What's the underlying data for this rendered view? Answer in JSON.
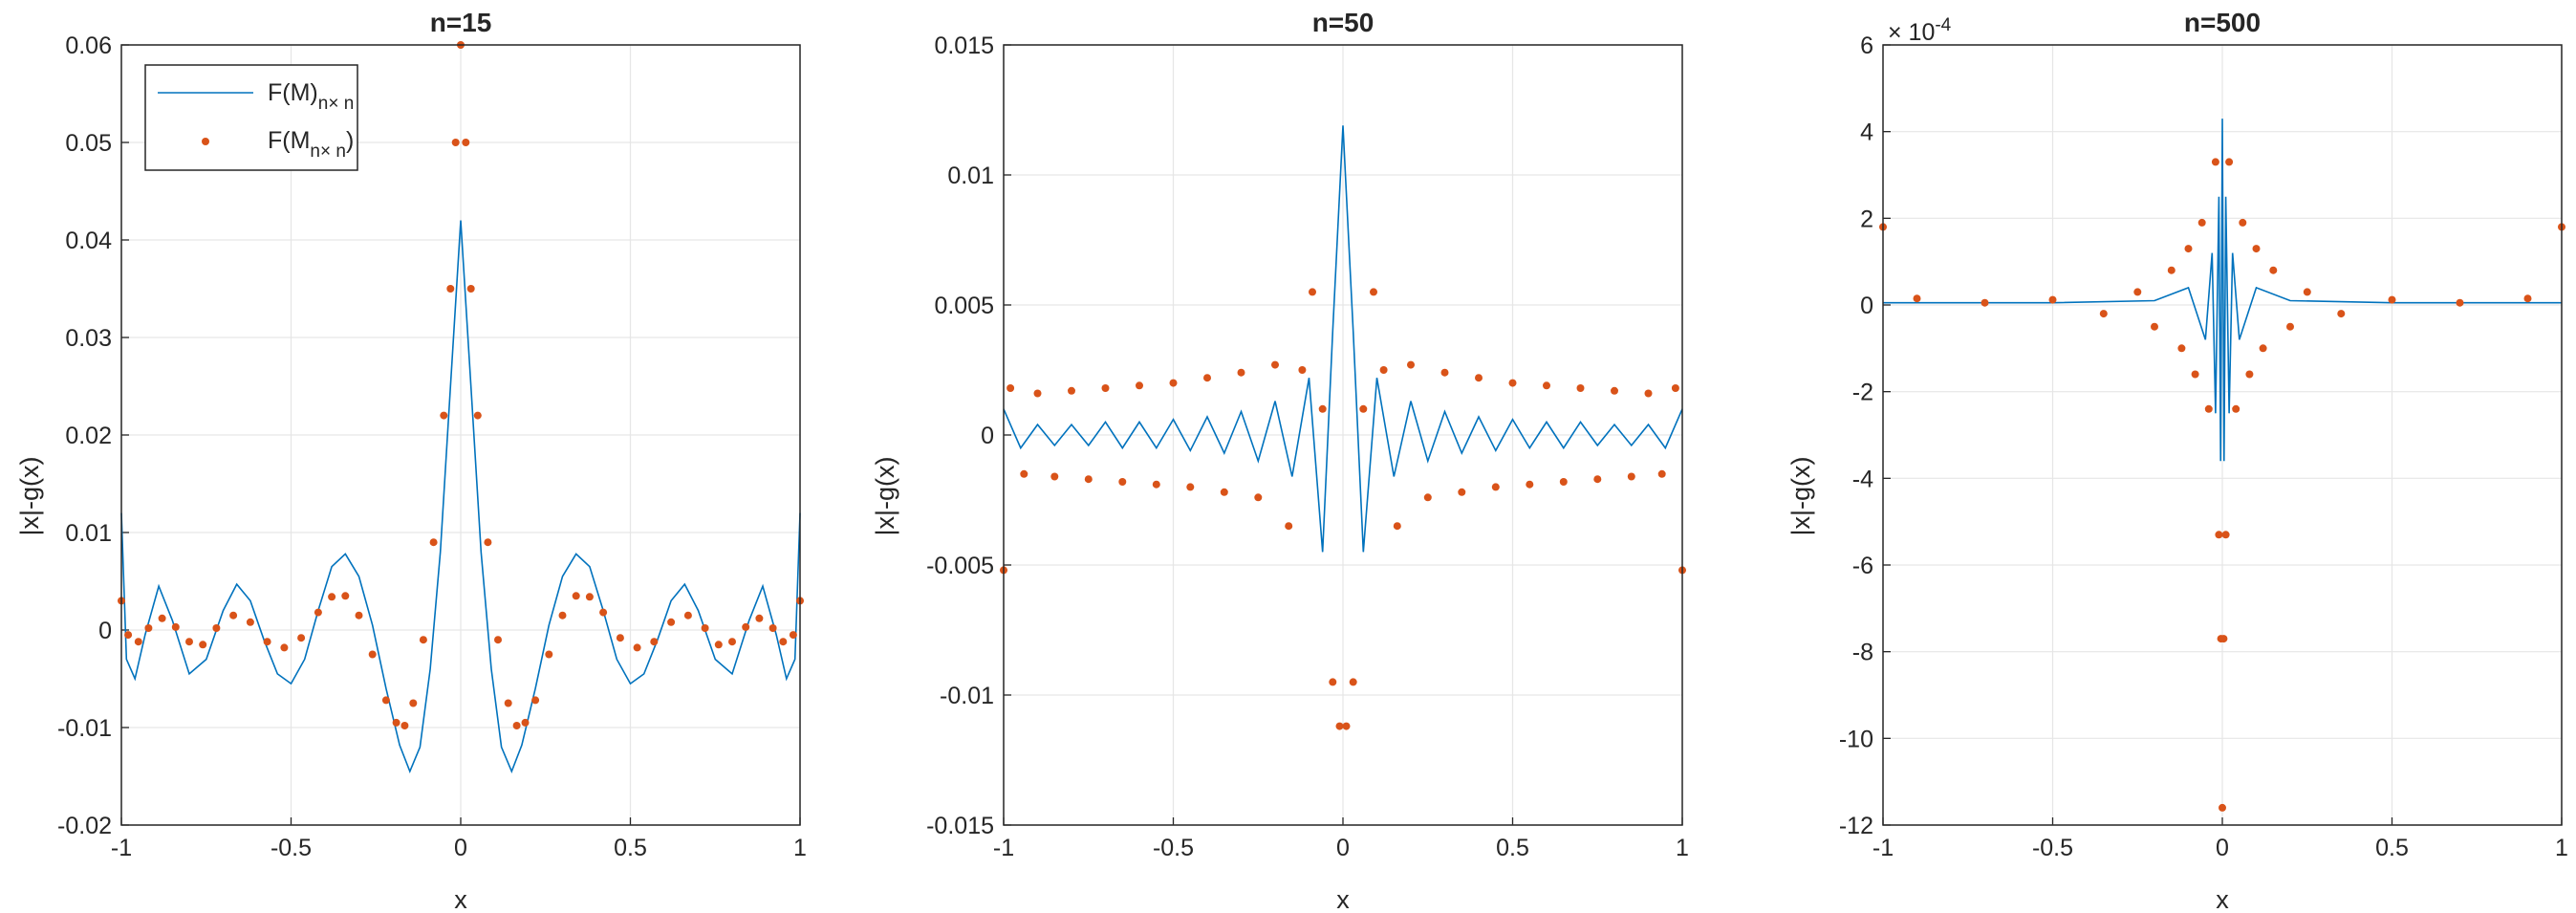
{
  "figure": {
    "colors": {
      "line": "#0072BD",
      "dots": "#D95319",
      "grid": "#e6e6e6",
      "axis": "#262626"
    }
  },
  "legend": {
    "entries": [
      "F(M)n× n",
      "F(Mn× n)"
    ],
    "location": "top-left of first panel"
  },
  "chart_data": [
    {
      "type": "line",
      "title": "n=15",
      "xlabel": "x",
      "ylabel": "|x|-g(x)",
      "xlim": [
        -1,
        1
      ],
      "ylim": [
        -0.02,
        0.06
      ],
      "xticks": [
        "-1",
        "-0.5",
        "0",
        "0.5",
        "1"
      ],
      "yticks": [
        "-0.02",
        "-0.01",
        "0",
        "0.01",
        "0.02",
        "0.03",
        "0.04",
        "0.05",
        "0.06"
      ],
      "exponent_label": "",
      "grid": true,
      "series": [
        {
          "name": "F(M)n× n",
          "style": "line",
          "x": [
            -1,
            -0.985,
            -0.96,
            -0.93,
            -0.89,
            -0.85,
            -0.8,
            -0.75,
            -0.7,
            -0.66,
            -0.62,
            -0.58,
            -0.54,
            -0.5,
            -0.46,
            -0.42,
            -0.38,
            -0.34,
            -0.3,
            -0.26,
            -0.22,
            -0.18,
            -0.15,
            -0.12,
            -0.09,
            -0.06,
            -0.03,
            0,
            0.03,
            0.06,
            0.09,
            0.12,
            0.15,
            0.18,
            0.22,
            0.26,
            0.3,
            0.34,
            0.38,
            0.42,
            0.46,
            0.5,
            0.54,
            0.58,
            0.62,
            0.66,
            0.7,
            0.75,
            0.8,
            0.85,
            0.89,
            0.93,
            0.96,
            0.985,
            1
          ],
          "values": [
            0.012,
            -0.003,
            -0.005,
            -0.0005,
            0.0045,
            0.001,
            -0.0045,
            -0.003,
            0.002,
            0.0047,
            0.003,
            -0.001,
            -0.0045,
            -0.0055,
            -0.003,
            0.002,
            0.0065,
            0.0078,
            0.0055,
            0.0005,
            -0.006,
            -0.0118,
            -0.0145,
            -0.012,
            -0.004,
            0.008,
            0.025,
            0.042,
            0.025,
            0.008,
            -0.004,
            -0.012,
            -0.0145,
            -0.0118,
            -0.006,
            0.0005,
            0.0055,
            0.0078,
            0.0065,
            0.002,
            -0.003,
            -0.0055,
            -0.0045,
            -0.001,
            0.003,
            0.0047,
            0.002,
            -0.003,
            -0.0045,
            0.001,
            0.0045,
            -0.0005,
            -0.005,
            -0.003,
            0.012
          ]
        },
        {
          "name": "F(Mn× n)",
          "style": "dots",
          "x": [
            -1,
            -0.98,
            -0.95,
            -0.92,
            -0.88,
            -0.84,
            -0.8,
            -0.76,
            -0.72,
            -0.67,
            -0.62,
            -0.57,
            -0.52,
            -0.47,
            -0.42,
            -0.38,
            -0.34,
            -0.3,
            -0.26,
            -0.22,
            -0.19,
            -0.165,
            -0.14,
            -0.11,
            -0.08,
            -0.05,
            -0.03,
            -0.015,
            0,
            0.015,
            0.03,
            0.05,
            0.08,
            0.11,
            0.14,
            0.165,
            0.19,
            0.22,
            0.26,
            0.3,
            0.34,
            0.38,
            0.42,
            0.47,
            0.52,
            0.57,
            0.62,
            0.67,
            0.72,
            0.76,
            0.8,
            0.84,
            0.88,
            0.92,
            0.95,
            0.98,
            1
          ],
          "values": [
            0.003,
            -0.0005,
            -0.0012,
            0.0002,
            0.0012,
            0.0003,
            -0.0012,
            -0.0015,
            0.0002,
            0.0015,
            0.0008,
            -0.0012,
            -0.0018,
            -0.0008,
            0.0018,
            0.0034,
            0.0035,
            0.0015,
            -0.0025,
            -0.0072,
            -0.0095,
            -0.0098,
            -0.0075,
            -0.001,
            0.009,
            0.022,
            0.035,
            0.05,
            0.06,
            0.05,
            0.035,
            0.022,
            0.009,
            -0.001,
            -0.0075,
            -0.0098,
            -0.0095,
            -0.0072,
            -0.0025,
            0.0015,
            0.0035,
            0.0034,
            0.0018,
            -0.0008,
            -0.0018,
            -0.0012,
            0.0008,
            0.0015,
            0.0002,
            -0.0015,
            -0.0012,
            0.0003,
            0.0012,
            0.0002,
            -0.0012,
            -0.0005,
            0.003
          ]
        }
      ]
    },
    {
      "type": "line",
      "title": "n=50",
      "xlabel": "x",
      "ylabel": "|x|-g(x)",
      "xlim": [
        -1,
        1
      ],
      "ylim": [
        -0.015,
        0.015
      ],
      "xticks": [
        "-1",
        "-0.5",
        "0",
        "0.5",
        "1"
      ],
      "yticks": [
        "-0.015",
        "-0.01",
        "-0.005",
        "0",
        "0.005",
        "0.01",
        "0.015"
      ],
      "exponent_label": "",
      "grid": true,
      "series": [
        {
          "name": "F(M)n× n",
          "style": "line",
          "x": [
            -1,
            -0.95,
            -0.9,
            -0.85,
            -0.8,
            -0.75,
            -0.7,
            -0.65,
            -0.6,
            -0.55,
            -0.5,
            -0.45,
            -0.4,
            -0.35,
            -0.3,
            -0.25,
            -0.2,
            -0.15,
            -0.1,
            -0.06,
            -0.03,
            0,
            0.03,
            0.06,
            0.1,
            0.15,
            0.2,
            0.25,
            0.3,
            0.35,
            0.4,
            0.45,
            0.5,
            0.55,
            0.6,
            0.65,
            0.7,
            0.75,
            0.8,
            0.85,
            0.9,
            0.95,
            1
          ],
          "values": [
            0.001,
            -0.0005,
            0.0004,
            -0.0004,
            0.0004,
            -0.0004,
            0.0005,
            -0.0005,
            0.0005,
            -0.0005,
            0.0006,
            -0.0006,
            0.0007,
            -0.0007,
            0.0009,
            -0.001,
            0.0013,
            -0.0016,
            0.0022,
            -0.0045,
            0.004,
            0.0119,
            0.004,
            -0.0045,
            0.0022,
            -0.0016,
            0.0013,
            -0.001,
            0.0009,
            -0.0007,
            0.0007,
            -0.0006,
            0.0006,
            -0.0005,
            0.0005,
            -0.0005,
            0.0005,
            -0.0004,
            0.0004,
            -0.0004,
            0.0004,
            -0.0005,
            0.001
          ]
        },
        {
          "name": "F(Mn× n)",
          "style": "dots",
          "x": [
            -1,
            -0.98,
            -0.94,
            -0.9,
            -0.85,
            -0.8,
            -0.75,
            -0.7,
            -0.65,
            -0.6,
            -0.55,
            -0.5,
            -0.45,
            -0.4,
            -0.35,
            -0.3,
            -0.25,
            -0.2,
            -0.16,
            -0.12,
            -0.09,
            -0.06,
            -0.03,
            -0.01,
            0.01,
            0.03,
            0.06,
            0.09,
            0.12,
            0.16,
            0.2,
            0.25,
            0.3,
            0.35,
            0.4,
            0.45,
            0.5,
            0.55,
            0.6,
            0.65,
            0.7,
            0.75,
            0.8,
            0.85,
            0.9,
            0.94,
            0.98,
            1
          ],
          "values": [
            -0.0052,
            0.0018,
            -0.0015,
            0.0016,
            -0.0016,
            0.0017,
            -0.0017,
            0.0018,
            -0.0018,
            0.0019,
            -0.0019,
            0.002,
            -0.002,
            0.0022,
            -0.0022,
            0.0024,
            -0.0024,
            0.0027,
            -0.0035,
            0.0025,
            0.0055,
            0.001,
            -0.0095,
            -0.0112,
            -0.0112,
            -0.0095,
            0.001,
            0.0055,
            0.0025,
            -0.0035,
            0.0027,
            -0.0024,
            0.0024,
            -0.0022,
            0.0022,
            -0.002,
            0.002,
            -0.0019,
            0.0019,
            -0.0018,
            0.0018,
            -0.0017,
            0.0017,
            -0.0016,
            0.0016,
            -0.0015,
            0.0018,
            -0.0052
          ]
        }
      ]
    },
    {
      "type": "line",
      "title": "n=500",
      "xlabel": "x",
      "ylabel": "|x|-g(x)",
      "xlim": [
        -1,
        1
      ],
      "ylim": [
        -12,
        6
      ],
      "xticks": [
        "-1",
        "-0.5",
        "0",
        "0.5",
        "1"
      ],
      "yticks": [
        "-12",
        "-10",
        "-8",
        "-6",
        "-4",
        "-2",
        "0",
        "2",
        "4",
        "6"
      ],
      "exponent_label": "× 10-4",
      "grid": true,
      "series": [
        {
          "name": "F(M)n× n",
          "style": "line",
          "x": [
            -1,
            -0.5,
            -0.2,
            -0.1,
            -0.05,
            -0.03,
            -0.02,
            -0.01,
            -0.005,
            0,
            0.005,
            0.01,
            0.02,
            0.03,
            0.05,
            0.1,
            0.2,
            0.5,
            1
          ],
          "values": [
            0.05,
            0.05,
            0.1,
            0.4,
            -0.8,
            1.2,
            -2.5,
            2.5,
            -3.6,
            4.3,
            -3.6,
            2.5,
            -2.5,
            1.2,
            -0.8,
            0.4,
            0.1,
            0.05,
            0.05
          ]
        },
        {
          "name": "F(Mn× n)",
          "style": "dots",
          "x": [
            -1,
            -0.9,
            -0.7,
            -0.5,
            -0.35,
            -0.25,
            -0.2,
            -0.15,
            -0.12,
            -0.1,
            -0.08,
            -0.06,
            -0.04,
            -0.02,
            -0.01,
            -0.004,
            0,
            0.004,
            0.01,
            0.02,
            0.04,
            0.06,
            0.08,
            0.1,
            0.12,
            0.15,
            0.2,
            0.25,
            0.35,
            0.5,
            0.7,
            0.9,
            1
          ],
          "values": [
            1.8,
            0.15,
            0.05,
            0.12,
            -0.2,
            0.3,
            -0.5,
            0.8,
            -1.0,
            1.3,
            -1.6,
            1.9,
            -2.4,
            3.3,
            -5.3,
            -7.7,
            -11.6,
            -7.7,
            -5.3,
            3.3,
            -2.4,
            1.9,
            -1.6,
            1.3,
            -1.0,
            0.8,
            -0.5,
            0.3,
            -0.2,
            0.12,
            0.05,
            0.15,
            1.8
          ]
        }
      ]
    }
  ]
}
